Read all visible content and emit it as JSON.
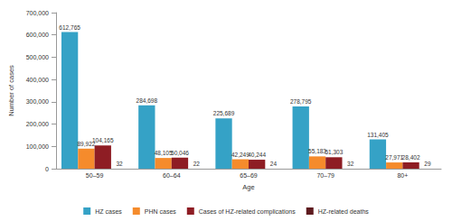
{
  "chart_data": {
    "type": "bar",
    "x_label": "Age",
    "y_label": "Number of cases",
    "categories": [
      "50–59",
      "60–64",
      "65–69",
      "70–79",
      "80+"
    ],
    "series": [
      {
        "name": "HZ cases",
        "color": "#35a2c6",
        "values": [
          612765,
          284698,
          225689,
          278795,
          131405
        ],
        "value_labels": [
          "612,765",
          "284,698",
          "225,689",
          "278,795",
          "131,405"
        ]
      },
      {
        "name": "PHN cases",
        "color": "#f58b2c",
        "values": [
          89922,
          48105,
          42249,
          55183,
          27971
        ],
        "value_labels": [
          "89,922",
          "48,105",
          "42,249",
          "55,183",
          "27,971"
        ]
      },
      {
        "name": "Cases of HZ-related complications",
        "color": "#8e1d24",
        "values": [
          104165,
          50046,
          40244,
          51303,
          28402
        ],
        "value_labels": [
          "104,165",
          "50,046",
          "40,244",
          "51,303",
          "28,402"
        ]
      },
      {
        "name": "HZ-related deaths",
        "color": "#5e1b1f",
        "values": [
          32,
          22,
          24,
          32,
          29
        ]
      }
    ],
    "ylim": [
      0,
      700000
    ],
    "yticks": [
      0,
      {
        "value": 100000,
        "label": "100,000"
      },
      {
        "value": 200000,
        "label": "200,000"
      },
      {
        "value": 300000,
        "label": "300,000"
      },
      {
        "value": 400000,
        "label": "400,000"
      },
      {
        "value": 500000,
        "label": "500,000"
      },
      {
        "value": 600000,
        "label": "600,000"
      },
      {
        "value": 700000,
        "label": "700,000"
      }
    ],
    "grid": false,
    "legend": "bottom",
    "data_labels": true
  }
}
